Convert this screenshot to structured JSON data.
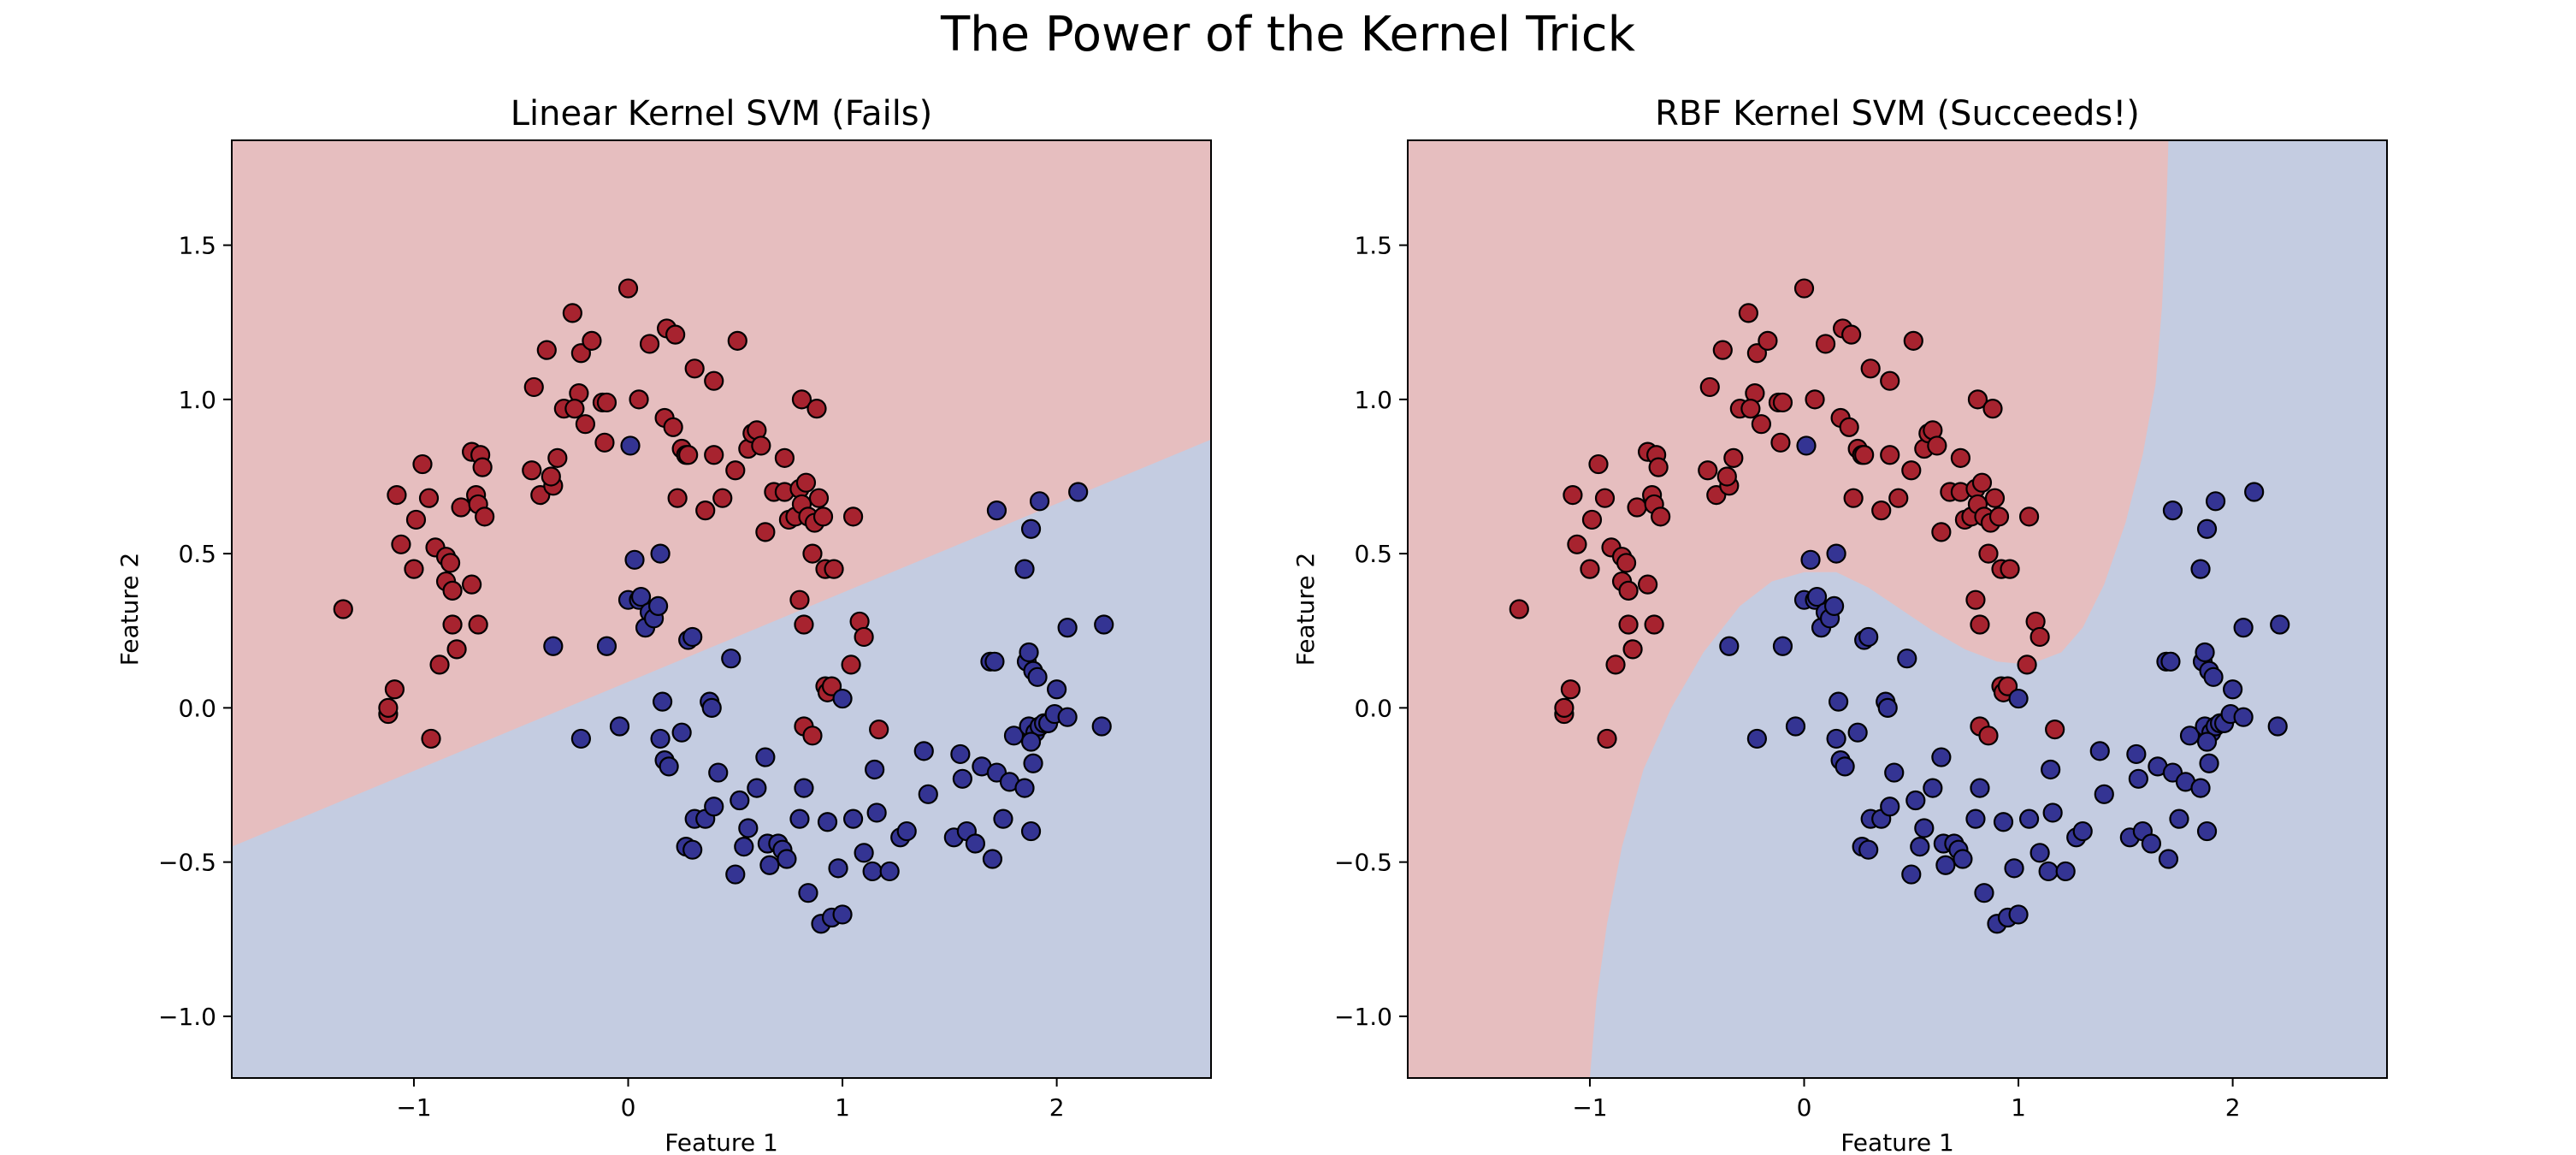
{
  "figure": {
    "title": "The Power of the Kernel Trick"
  },
  "colors": {
    "class0_point": "#a7232f",
    "class1_point": "#343493",
    "region_class0": "#e6bebf",
    "region_class1": "#c4cce1",
    "edge": "#000000"
  },
  "chart_data": [
    {
      "type": "scatter",
      "title": "Linear Kernel SVM (Fails)",
      "xlabel": "Feature 1",
      "ylabel": "Feature 2",
      "xlim": [
        -1.85,
        2.72
      ],
      "ylim": [
        -1.2,
        1.84
      ],
      "xticks": [
        {
          "v": -1,
          "label": "−1"
        },
        {
          "v": 0,
          "label": "0"
        },
        {
          "v": 1,
          "label": "1"
        },
        {
          "v": 2,
          "label": "2"
        }
      ],
      "yticks": [
        {
          "v": -1.0,
          "label": "−1.0"
        },
        {
          "v": -0.5,
          "label": "−0.5"
        },
        {
          "v": 0.0,
          "label": "0.0"
        },
        {
          "v": 0.5,
          "label": "0.5"
        },
        {
          "v": 1.0,
          "label": "1.0"
        },
        {
          "v": 1.5,
          "label": "1.5"
        }
      ],
      "decision_boundary": {
        "kind": "linear",
        "line": [
          [
            -1.85,
            -0.45
          ],
          [
            2.72,
            0.87
          ]
        ],
        "upper_class": 0
      },
      "grid": false,
      "legend": "none"
    },
    {
      "type": "scatter",
      "title": "RBF Kernel SVM (Succeeds!)",
      "xlabel": "Feature 1",
      "ylabel": "Feature 2",
      "xlim": [
        -1.85,
        2.72
      ],
      "ylim": [
        -1.2,
        1.84
      ],
      "xticks": [
        {
          "v": -1,
          "label": "−1"
        },
        {
          "v": 0,
          "label": "0"
        },
        {
          "v": 1,
          "label": "1"
        },
        {
          "v": 2,
          "label": "2"
        }
      ],
      "yticks": [
        {
          "v": -1.0,
          "label": "−1.0"
        },
        {
          "v": -0.5,
          "label": "−0.5"
        },
        {
          "v": 0.0,
          "label": "0.0"
        },
        {
          "v": 0.5,
          "label": "0.5"
        },
        {
          "v": 1.0,
          "label": "1.0"
        },
        {
          "v": 1.5,
          "label": "1.5"
        }
      ],
      "decision_boundary": {
        "kind": "curve",
        "curve": [
          [
            -1.0,
            -1.2
          ],
          [
            -0.97,
            -0.95
          ],
          [
            -0.92,
            -0.7
          ],
          [
            -0.85,
            -0.45
          ],
          [
            -0.75,
            -0.2
          ],
          [
            -0.62,
            0.0
          ],
          [
            -0.47,
            0.18
          ],
          [
            -0.3,
            0.33
          ],
          [
            -0.15,
            0.41
          ],
          [
            0.0,
            0.44
          ],
          [
            0.15,
            0.44
          ],
          [
            0.3,
            0.39
          ],
          [
            0.45,
            0.32
          ],
          [
            0.6,
            0.25
          ],
          [
            0.75,
            0.19
          ],
          [
            0.9,
            0.15
          ],
          [
            1.05,
            0.14
          ],
          [
            1.2,
            0.18
          ],
          [
            1.3,
            0.26
          ],
          [
            1.4,
            0.4
          ],
          [
            1.5,
            0.6
          ],
          [
            1.58,
            0.82
          ],
          [
            1.64,
            1.05
          ],
          [
            1.67,
            1.3
          ],
          [
            1.69,
            1.6
          ],
          [
            1.7,
            1.84
          ]
        ],
        "upper_left_class": 0
      },
      "grid": false,
      "legend": "none"
    }
  ],
  "points": {
    "class0": [
      [
        -1.33,
        0.32
      ],
      [
        -1.12,
        -0.02
      ],
      [
        -1.12,
        0.0
      ],
      [
        -1.09,
        0.06
      ],
      [
        -1.08,
        0.69
      ],
      [
        -0.96,
        0.79
      ],
      [
        -0.93,
        0.68
      ],
      [
        -0.99,
        0.61
      ],
      [
        -1.0,
        0.45
      ],
      [
        -1.06,
        0.53
      ],
      [
        -0.92,
        -0.1
      ],
      [
        -0.88,
        0.14
      ],
      [
        -0.9,
        0.52
      ],
      [
        -0.85,
        0.49
      ],
      [
        -0.83,
        0.47
      ],
      [
        -0.85,
        0.41
      ],
      [
        -0.82,
        0.27
      ],
      [
        -0.82,
        0.38
      ],
      [
        -0.8,
        0.19
      ],
      [
        -0.78,
        0.65
      ],
      [
        -0.73,
        0.83
      ],
      [
        -0.69,
        0.82
      ],
      [
        -0.68,
        0.78
      ],
      [
        -0.71,
        0.69
      ],
      [
        -0.7,
        0.66
      ],
      [
        -0.67,
        0.62
      ],
      [
        -0.73,
        0.4
      ],
      [
        -0.7,
        0.27
      ],
      [
        -0.45,
        0.77
      ],
      [
        -0.44,
        1.04
      ],
      [
        -0.38,
        1.16
      ],
      [
        -0.41,
        0.69
      ],
      [
        -0.35,
        0.72
      ],
      [
        -0.36,
        0.75
      ],
      [
        -0.33,
        0.81
      ],
      [
        -0.3,
        0.97
      ],
      [
        -0.26,
        1.28
      ],
      [
        -0.23,
        1.02
      ],
      [
        -0.25,
        0.97
      ],
      [
        -0.2,
        0.92
      ],
      [
        -0.22,
        1.15
      ],
      [
        -0.17,
        1.19
      ],
      [
        -0.12,
        0.99
      ],
      [
        -0.1,
        0.99
      ],
      [
        -0.11,
        0.86
      ],
      [
        0.0,
        1.36
      ],
      [
        0.05,
        1.0
      ],
      [
        0.1,
        1.18
      ],
      [
        0.17,
        0.94
      ],
      [
        0.18,
        1.23
      ],
      [
        0.21,
        0.91
      ],
      [
        0.22,
        1.21
      ],
      [
        0.23,
        0.68
      ],
      [
        0.25,
        0.84
      ],
      [
        0.27,
        0.82
      ],
      [
        0.28,
        0.82
      ],
      [
        0.31,
        1.1
      ],
      [
        0.36,
        0.64
      ],
      [
        0.4,
        1.06
      ],
      [
        0.4,
        0.82
      ],
      [
        0.44,
        0.68
      ],
      [
        0.5,
        0.77
      ],
      [
        0.51,
        1.19
      ],
      [
        0.56,
        0.84
      ],
      [
        0.58,
        0.89
      ],
      [
        0.6,
        0.9
      ],
      [
        0.62,
        0.85
      ],
      [
        0.64,
        0.57
      ],
      [
        0.68,
        0.7
      ],
      [
        0.73,
        0.81
      ],
      [
        0.73,
        0.7
      ],
      [
        0.75,
        0.61
      ],
      [
        0.78,
        0.62
      ],
      [
        0.8,
        0.71
      ],
      [
        0.81,
        0.66
      ],
      [
        0.81,
        1.0
      ],
      [
        0.83,
        0.73
      ],
      [
        0.84,
        0.62
      ],
      [
        0.86,
        0.5
      ],
      [
        0.87,
        0.6
      ],
      [
        0.88,
        0.97
      ],
      [
        0.89,
        0.68
      ],
      [
        0.91,
        0.62
      ],
      [
        0.92,
        0.45
      ],
      [
        0.92,
        0.07
      ],
      [
        0.93,
        0.05
      ],
      [
        0.95,
        0.07
      ],
      [
        0.96,
        0.45
      ],
      [
        1.05,
        0.62
      ],
      [
        1.08,
        0.28
      ],
      [
        1.1,
        0.23
      ],
      [
        1.17,
        -0.07
      ],
      [
        0.8,
        0.35
      ],
      [
        0.82,
        0.27
      ],
      [
        0.82,
        -0.06
      ],
      [
        0.86,
        -0.09
      ],
      [
        1.04,
        0.14
      ]
    ],
    "class1": [
      [
        -0.35,
        0.2
      ],
      [
        -0.22,
        -0.1
      ],
      [
        -0.1,
        0.2
      ],
      [
        -0.04,
        -0.06
      ],
      [
        0.0,
        0.35
      ],
      [
        0.01,
        0.85
      ],
      [
        0.03,
        0.48
      ],
      [
        0.05,
        0.35
      ],
      [
        0.06,
        0.36
      ],
      [
        0.08,
        0.26
      ],
      [
        0.1,
        0.31
      ],
      [
        0.12,
        0.29
      ],
      [
        0.14,
        0.33
      ],
      [
        0.15,
        0.5
      ],
      [
        0.15,
        -0.1
      ],
      [
        0.16,
        0.02
      ],
      [
        0.17,
        -0.17
      ],
      [
        0.19,
        -0.19
      ],
      [
        0.25,
        -0.08
      ],
      [
        0.27,
        -0.45
      ],
      [
        0.28,
        0.22
      ],
      [
        0.3,
        -0.46
      ],
      [
        0.31,
        -0.36
      ],
      [
        0.36,
        -0.36
      ],
      [
        0.38,
        0.02
      ],
      [
        0.39,
        0.0
      ],
      [
        0.4,
        -0.32
      ],
      [
        0.42,
        -0.21
      ],
      [
        0.48,
        0.16
      ],
      [
        0.5,
        -0.54
      ],
      [
        0.52,
        -0.3
      ],
      [
        0.54,
        -0.45
      ],
      [
        0.56,
        -0.39
      ],
      [
        0.6,
        -0.26
      ],
      [
        0.64,
        -0.16
      ],
      [
        0.65,
        -0.44
      ],
      [
        0.66,
        -0.51
      ],
      [
        0.7,
        -0.44
      ],
      [
        0.72,
        -0.46
      ],
      [
        0.74,
        -0.49
      ],
      [
        0.82,
        -0.26
      ],
      [
        0.8,
        -0.36
      ],
      [
        0.84,
        -0.6
      ],
      [
        0.9,
        -0.7
      ],
      [
        0.95,
        -0.68
      ],
      [
        1.0,
        -0.67
      ],
      [
        0.93,
        -0.37
      ],
      [
        0.98,
        -0.52
      ],
      [
        1.0,
        0.03
      ],
      [
        1.05,
        -0.36
      ],
      [
        1.1,
        -0.47
      ],
      [
        1.14,
        -0.53
      ],
      [
        1.15,
        -0.2
      ],
      [
        1.16,
        -0.34
      ],
      [
        1.22,
        -0.53
      ],
      [
        1.27,
        -0.42
      ],
      [
        1.3,
        -0.4
      ],
      [
        1.38,
        -0.14
      ],
      [
        1.4,
        -0.28
      ],
      [
        1.52,
        -0.42
      ],
      [
        1.55,
        -0.15
      ],
      [
        1.56,
        -0.23
      ],
      [
        1.58,
        -0.4
      ],
      [
        1.62,
        -0.44
      ],
      [
        1.65,
        -0.19
      ],
      [
        1.7,
        -0.49
      ],
      [
        1.72,
        -0.21
      ],
      [
        1.75,
        -0.36
      ],
      [
        1.78,
        -0.24
      ],
      [
        1.8,
        -0.09
      ],
      [
        1.85,
        -0.26
      ],
      [
        1.87,
        -0.06
      ],
      [
        1.88,
        -0.4
      ],
      [
        1.9,
        -0.08
      ],
      [
        1.92,
        -0.06
      ],
      [
        1.94,
        -0.05
      ],
      [
        1.96,
        -0.05
      ],
      [
        1.99,
        -0.02
      ],
      [
        2.05,
        -0.03
      ],
      [
        1.88,
        -0.11
      ],
      [
        1.89,
        -0.18
      ],
      [
        2.0,
        0.06
      ],
      [
        2.05,
        0.26
      ],
      [
        2.22,
        0.27
      ],
      [
        2.21,
        -0.06
      ],
      [
        1.69,
        0.15
      ],
      [
        1.71,
        0.15
      ],
      [
        1.86,
        0.15
      ],
      [
        1.87,
        0.18
      ],
      [
        1.89,
        0.12
      ],
      [
        1.91,
        0.1
      ],
      [
        1.85,
        0.45
      ],
      [
        1.88,
        0.58
      ],
      [
        1.92,
        0.67
      ],
      [
        2.1,
        0.7
      ],
      [
        1.72,
        0.64
      ],
      [
        0.3,
        0.23
      ]
    ]
  }
}
